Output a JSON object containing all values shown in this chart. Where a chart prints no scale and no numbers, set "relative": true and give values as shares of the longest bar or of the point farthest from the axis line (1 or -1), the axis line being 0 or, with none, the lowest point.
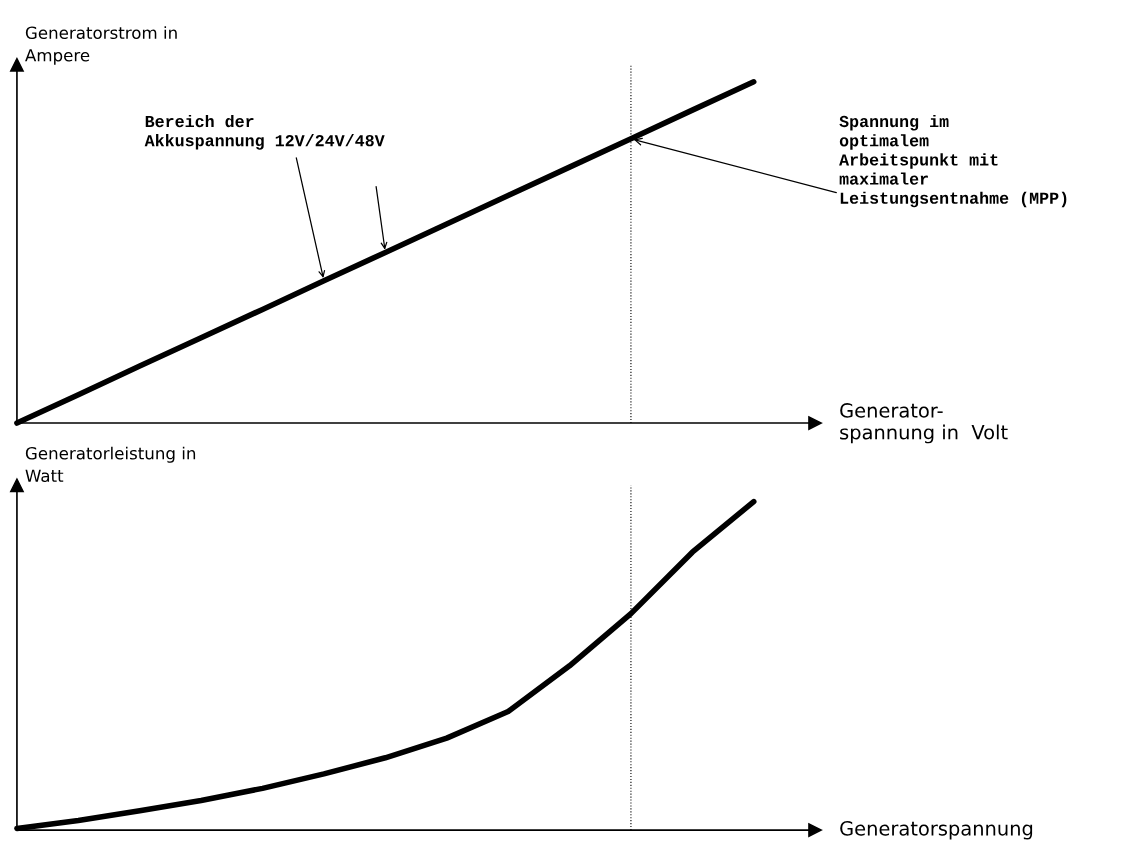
{
  "chart_data": [
    {
      "type": "line",
      "relative": true,
      "categories": [
        null,
        null,
        null,
        null,
        null,
        null,
        null,
        null,
        null,
        null,
        null,
        null,
        null
      ],
      "ylabel": "Generatorstrom in\nAmpere",
      "xlabel": "Generator-\nspannung in  Volt",
      "series": [
        {
          "color": "#000000",
          "values": [
            0,
            0.083,
            0.167,
            0.25,
            0.333,
            0.417,
            0.5,
            0.583,
            0.667,
            0.75,
            0.833,
            0.917,
            1.0
          ]
        }
      ],
      "annotations": [
        "Bereich der\nAkkuspannung 12V/24V/48V",
        "Spannung im\noptimalem\nArbeitspunkt mit\nmaximaler\nLeistungsentnahme (MPP)"
      ]
    },
    {
      "type": "line",
      "relative": true,
      "categories": [
        null,
        null,
        null,
        null,
        null,
        null,
        null,
        null,
        null,
        null,
        null,
        null,
        null
      ],
      "ylabel": "Generatorleistung in\nWatt",
      "xlabel": "Generatorspannung",
      "series": [
        {
          "color": "#000000",
          "values": [
            0.005,
            0.029,
            0.059,
            0.09,
            0.127,
            0.171,
            0.22,
            0.28,
            0.361,
            0.5,
            0.659,
            0.846,
            1.0
          ]
        }
      ]
    }
  ]
}
